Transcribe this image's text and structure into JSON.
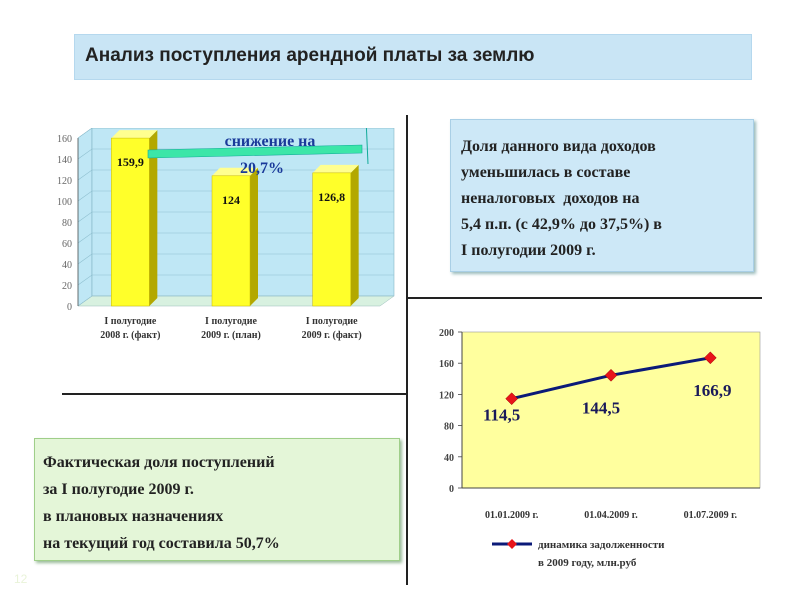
{
  "title": "Анализ поступления арендной платы за землю",
  "info_text": "Доля данного вида доходов\nуменьшилась в составе\nненалоговых  доходов на\n5,4 п.п. (с 42,9% до 37,5%) в\nI полугодии 2009 г.",
  "fact_text": "Фактическая доля поступлений\nза I полугодие 2009 г.\nв плановых назначениях\nна текущий год составила 50,7%",
  "slide_number": "12",
  "chart_data": [
    {
      "type": "bar",
      "categories": [
        [
          "I полугодие",
          "2008 г. (факт)"
        ],
        [
          "I полугодие",
          "2009 г. (план)"
        ],
        [
          "I полугодие",
          "2009 г. (факт)"
        ]
      ],
      "values": [
        159.9,
        124,
        126.8
      ],
      "data_labels": [
        "159,9",
        "124",
        "126,8"
      ],
      "annotation": [
        "снижение на",
        "20,7%"
      ],
      "yticks": [
        "0",
        "20",
        "40",
        "60",
        "80",
        "100",
        "120",
        "140",
        "160"
      ],
      "ylim": [
        0,
        160
      ],
      "colors": {
        "bar": "#ffff2a",
        "bar_side": "#b3a800",
        "wall": "#bfe7f5",
        "floor": "#d8f1e0",
        "arrow": "#3ce6a8"
      }
    },
    {
      "type": "line",
      "categories": [
        "01.01.2009 г.",
        "01.04.2009 г.",
        "01.07.2009 г."
      ],
      "values": [
        114.5,
        144.5,
        166.9
      ],
      "data_labels": [
        "114,5",
        "144,5",
        "166,9"
      ],
      "yticks": [
        "0",
        "40",
        "80",
        "120",
        "160",
        "200"
      ],
      "ylim": [
        0,
        200
      ],
      "legend": [
        "динамика задолженности",
        "в 2009 году, млн.руб"
      ],
      "legend_position": "bottom",
      "colors": {
        "plot_bg": "#ffff9e",
        "line": "#0b1a78",
        "marker": "#e8141a",
        "labels": "#1a1a5a"
      }
    }
  ]
}
